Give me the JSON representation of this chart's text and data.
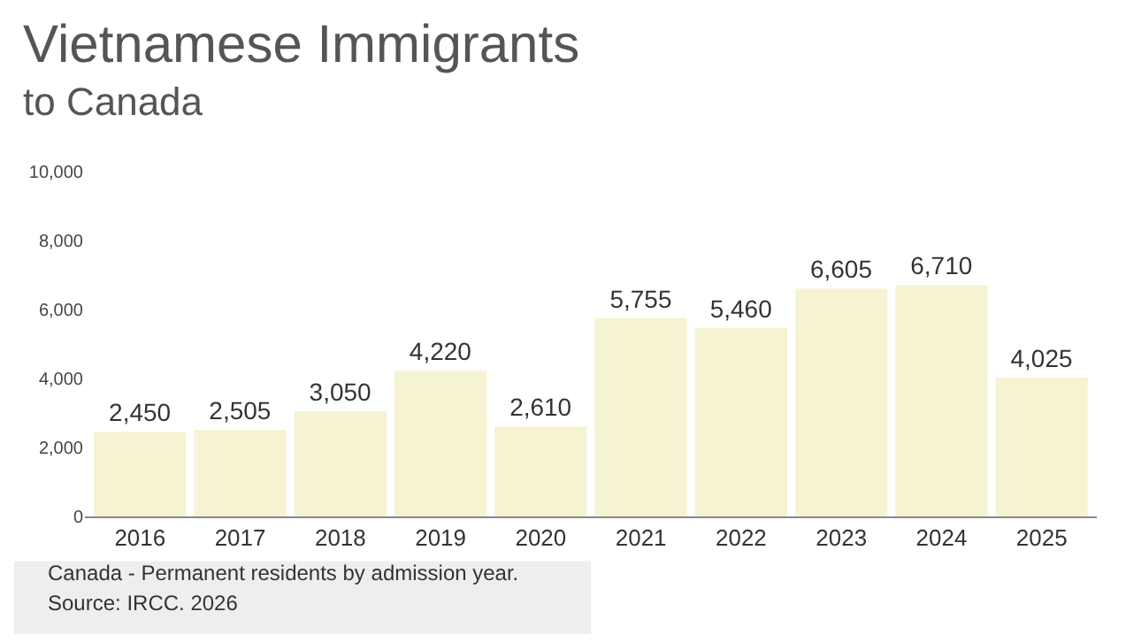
{
  "chart_data": {
    "type": "bar",
    "title": "Vietnamese Immigrants",
    "subtitle": "to Canada",
    "categories": [
      "2016",
      "2017",
      "2018",
      "2019",
      "2020",
      "2021",
      "2022",
      "2023",
      "2024",
      "2025"
    ],
    "values": [
      2450,
      2505,
      3050,
      4220,
      2610,
      5755,
      5460,
      6605,
      6710,
      4025
    ],
    "color": "#f6f3d3",
    "value_labels": [
      "2,450",
      "2,505",
      "3,050",
      "4,220",
      "2,610",
      "5,755",
      "5,460",
      "6,605",
      "6,710",
      "4,025"
    ],
    "ylim": [
      0,
      10000
    ],
    "yticks": [
      0,
      {
        "value": 2000,
        "label": "2,000"
      },
      {
        "value": 4000,
        "label": "4,000"
      },
      {
        "value": 6000,
        "label": "6,000"
      },
      {
        "value": 8000,
        "label": "8,000"
      },
      {
        "value": 10000,
        "label": "10,000"
      }
    ],
    "annotations": [
      "Canada - Permanent residents by admission year.",
      "Source: IRCC. 2026"
    ]
  }
}
